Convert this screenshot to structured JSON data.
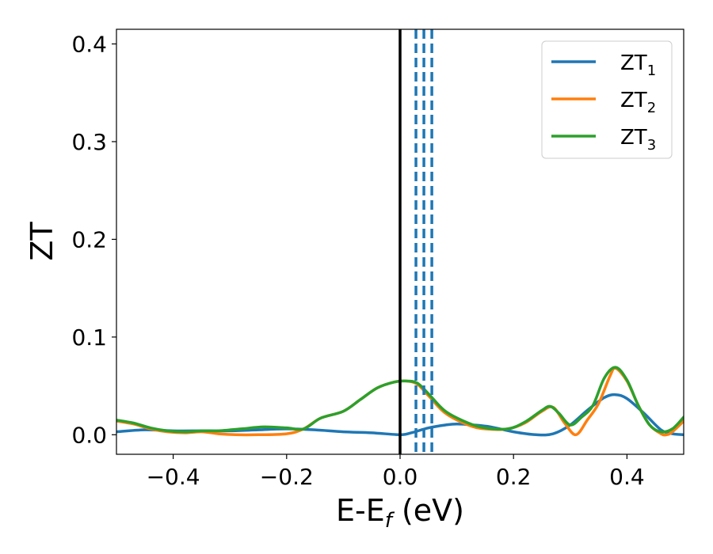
{
  "chart_data": {
    "type": "line",
    "title": "",
    "xlabel": {
      "main": "E-E",
      "sub": "f",
      "unit": " (eV)"
    },
    "ylabel": "ZT",
    "xlim": [
      -0.5,
      0.5
    ],
    "ylim": [
      -0.02,
      0.415
    ],
    "x_ticks": [
      -0.4,
      -0.2,
      0.0,
      0.2,
      0.4
    ],
    "x_tick_labels": [
      "−0.4",
      "−0.2",
      "0.0",
      "0.2",
      "0.4"
    ],
    "y_ticks": [
      0.0,
      0.1,
      0.2,
      0.3,
      0.4
    ],
    "y_tick_labels": [
      "0.0",
      "0.1",
      "0.2",
      "0.3",
      "0.4"
    ],
    "grid": false,
    "legend_position": "top-right",
    "fermi_line": {
      "x": 0.0,
      "color": "#000000",
      "style": "solid"
    },
    "dashed_lines": {
      "x": [
        0.028,
        0.042,
        0.056
      ],
      "color": "#1f77b4",
      "style": "dashed"
    },
    "series": [
      {
        "name": "ZT",
        "sub": "1",
        "color": "#1f77b4",
        "x": [
          -0.5,
          -0.45,
          -0.4,
          -0.35,
          -0.3,
          -0.25,
          -0.2,
          -0.15,
          -0.1,
          -0.05,
          0.0,
          0.02,
          0.05,
          0.08,
          0.1,
          0.13,
          0.16,
          0.2,
          0.24,
          0.27,
          0.3,
          0.33,
          0.36,
          0.38,
          0.4,
          0.43,
          0.46,
          0.48,
          0.5
        ],
        "y": [
          0.003,
          0.005,
          0.004,
          0.004,
          0.004,
          0.005,
          0.006,
          0.005,
          0.003,
          0.002,
          0.0,
          0.002,
          0.007,
          0.01,
          0.011,
          0.01,
          0.008,
          0.003,
          0.0,
          0.001,
          0.01,
          0.025,
          0.038,
          0.041,
          0.037,
          0.022,
          0.005,
          0.001,
          0.0
        ]
      },
      {
        "name": "ZT",
        "sub": "2",
        "color": "#ff7f0e",
        "x": [
          -0.5,
          -0.47,
          -0.44,
          -0.41,
          -0.38,
          -0.35,
          -0.32,
          -0.29,
          -0.25,
          -0.2,
          -0.17,
          -0.14,
          -0.1,
          -0.07,
          -0.04,
          -0.01,
          0.01,
          0.03,
          0.05,
          0.08,
          0.12,
          0.15,
          0.19,
          0.22,
          0.25,
          0.27,
          0.29,
          0.31,
          0.33,
          0.35,
          0.37,
          0.38,
          0.4,
          0.42,
          0.44,
          0.46,
          0.47,
          0.48,
          0.5
        ],
        "y": [
          0.014,
          0.011,
          0.006,
          0.003,
          0.002,
          0.003,
          0.001,
          0.0,
          0.0,
          0.001,
          0.006,
          0.017,
          0.024,
          0.036,
          0.048,
          0.054,
          0.055,
          0.052,
          0.04,
          0.022,
          0.01,
          0.006,
          0.006,
          0.012,
          0.024,
          0.028,
          0.012,
          0.0,
          0.015,
          0.032,
          0.06,
          0.068,
          0.055,
          0.03,
          0.01,
          0.001,
          0.0,
          0.003,
          0.014
        ]
      },
      {
        "name": "ZT",
        "sub": "3",
        "color": "#2ca02c",
        "x": [
          -0.5,
          -0.47,
          -0.44,
          -0.41,
          -0.38,
          -0.35,
          -0.32,
          -0.28,
          -0.24,
          -0.2,
          -0.17,
          -0.14,
          -0.1,
          -0.07,
          -0.04,
          -0.01,
          0.01,
          0.03,
          0.05,
          0.08,
          0.12,
          0.15,
          0.19,
          0.22,
          0.25,
          0.265,
          0.28,
          0.3,
          0.32,
          0.34,
          0.36,
          0.38,
          0.4,
          0.42,
          0.44,
          0.46,
          0.48,
          0.5
        ],
        "y": [
          0.015,
          0.012,
          0.007,
          0.004,
          0.003,
          0.004,
          0.004,
          0.006,
          0.008,
          0.007,
          0.006,
          0.017,
          0.024,
          0.036,
          0.048,
          0.054,
          0.055,
          0.053,
          0.042,
          0.024,
          0.012,
          0.007,
          0.006,
          0.013,
          0.025,
          0.029,
          0.022,
          0.01,
          0.018,
          0.03,
          0.058,
          0.069,
          0.056,
          0.03,
          0.01,
          0.003,
          0.006,
          0.018
        ]
      }
    ]
  }
}
